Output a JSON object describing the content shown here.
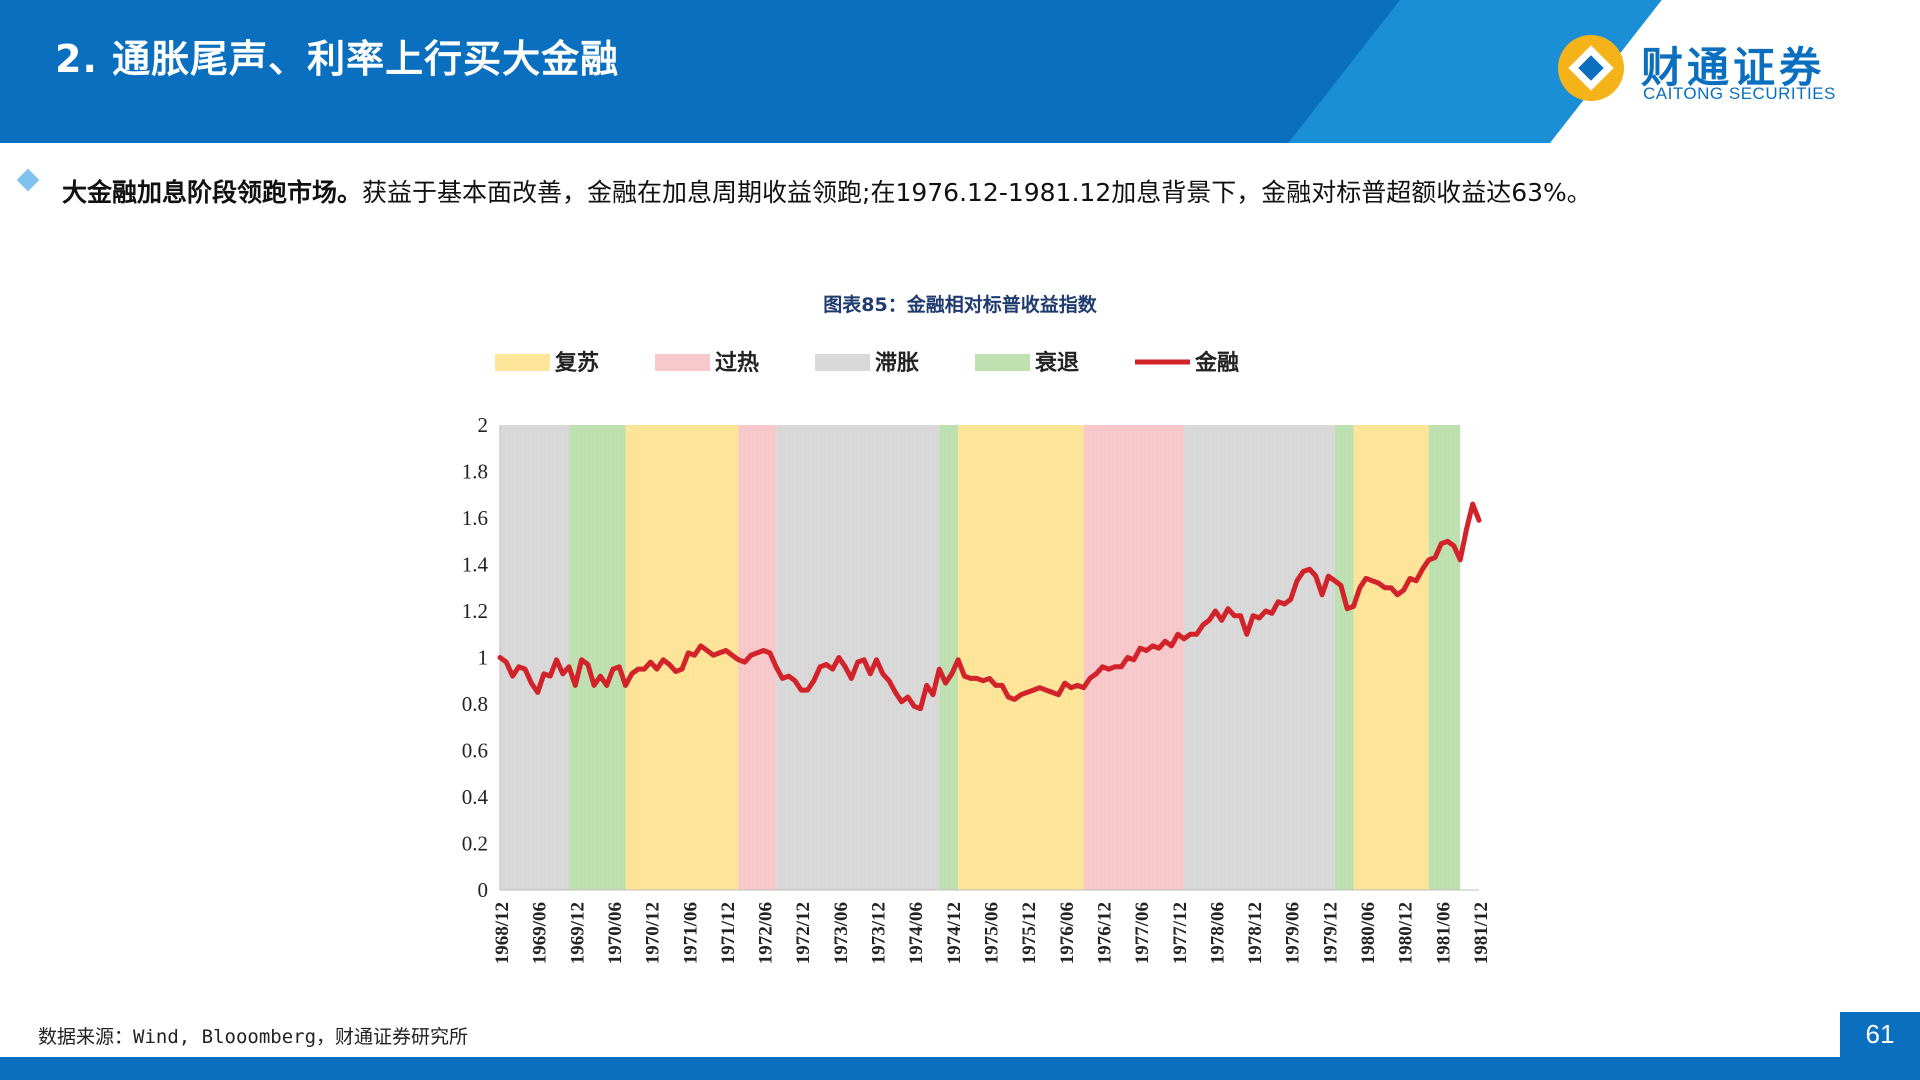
{
  "header": {
    "title": "2. 通胀尾声、利率上行买大金融",
    "logo_cn": "财通证券",
    "logo_en": "CAITONG SECURITIES"
  },
  "bullet": {
    "bold": "大金融加息阶段领跑市场。",
    "text": "获益于基本面改善，金融在加息周期收益领跑;在1976.12-1981.12加息背景下，金融对标普超额收益达63%。"
  },
  "chart_title": "图表85：金融相对标普收益指数",
  "source": "数据来源：Wind, Blooomberg，财通证券研究所",
  "page_number": "61",
  "colors": {
    "brand": "#0a6fbe",
    "recovery": "#fde59a",
    "overheat": "#f8c9cb",
    "stagflation": "#d9d9d9",
    "recession": "#bfe0b0",
    "line": "#d2232a"
  },
  "chart_data": {
    "type": "line",
    "legend": [
      {
        "label": "复苏",
        "key": "recovery"
      },
      {
        "label": "过热",
        "key": "overheat"
      },
      {
        "label": "滞胀",
        "key": "stagflation"
      },
      {
        "label": "衰退",
        "key": "recession"
      },
      {
        "label": "金融",
        "key": "line"
      }
    ],
    "ylim": [
      0,
      2
    ],
    "yticks": [
      "0",
      "0.2",
      "0.4",
      "0.6",
      "0.8",
      "1",
      "1.2",
      "1.4",
      "1.6",
      "1.8",
      "2"
    ],
    "x_start": "1968/12",
    "x_end": "1981/12",
    "xticks": [
      "1968/12",
      "1969/06",
      "1969/12",
      "1970/06",
      "1970/12",
      "1971/06",
      "1971/12",
      "1972/06",
      "1972/12",
      "1973/06",
      "1973/12",
      "1974/06",
      "1974/12",
      "1975/06",
      "1975/12",
      "1976/06",
      "1976/12",
      "1977/06",
      "1977/12",
      "1978/06",
      "1978/12",
      "1979/06",
      "1979/12",
      "1980/06",
      "1980/12",
      "1981/06",
      "1981/12"
    ],
    "phases": [
      {
        "phase": "stagflation",
        "from": "1968/12",
        "to": "1969/11"
      },
      {
        "phase": "recession",
        "from": "1969/11",
        "to": "1970/08"
      },
      {
        "phase": "recovery",
        "from": "1970/08",
        "to": "1972/02"
      },
      {
        "phase": "overheat",
        "from": "1972/02",
        "to": "1972/08"
      },
      {
        "phase": "stagflation",
        "from": "1972/08",
        "to": "1974/10"
      },
      {
        "phase": "recession",
        "from": "1974/10",
        "to": "1975/01"
      },
      {
        "phase": "recovery",
        "from": "1975/01",
        "to": "1976/09"
      },
      {
        "phase": "overheat",
        "from": "1976/09",
        "to": "1978/01"
      },
      {
        "phase": "stagflation",
        "from": "1978/01",
        "to": "1980/01"
      },
      {
        "phase": "recession",
        "from": "1980/01",
        "to": "1980/04"
      },
      {
        "phase": "recovery",
        "from": "1980/04",
        "to": "1981/04"
      },
      {
        "phase": "recession",
        "from": "1981/04",
        "to": "1981/09"
      }
    ],
    "series": [
      {
        "name": "金融",
        "points": [
          [
            "1968/12",
            1.0
          ],
          [
            "1969/01",
            0.98
          ],
          [
            "1969/02",
            0.92
          ],
          [
            "1969/03",
            0.96
          ],
          [
            "1969/04",
            0.95
          ],
          [
            "1969/05",
            0.89
          ],
          [
            "1969/06",
            0.85
          ],
          [
            "1969/07",
            0.93
          ],
          [
            "1969/08",
            0.92
          ],
          [
            "1969/09",
            0.99
          ],
          [
            "1969/10",
            0.93
          ],
          [
            "1969/11",
            0.96
          ],
          [
            "1969/12",
            0.88
          ],
          [
            "1970/01",
            0.99
          ],
          [
            "1970/02",
            0.97
          ],
          [
            "1970/03",
            0.88
          ],
          [
            "1970/04",
            0.92
          ],
          [
            "1970/05",
            0.88
          ],
          [
            "1970/06",
            0.95
          ],
          [
            "1970/07",
            0.96
          ],
          [
            "1970/08",
            0.88
          ],
          [
            "1970/09",
            0.93
          ],
          [
            "1970/10",
            0.95
          ],
          [
            "1970/11",
            0.95
          ],
          [
            "1970/12",
            0.98
          ],
          [
            "1971/01",
            0.95
          ],
          [
            "1971/02",
            0.99
          ],
          [
            "1971/03",
            0.97
          ],
          [
            "1971/04",
            0.94
          ],
          [
            "1971/05",
            0.95
          ],
          [
            "1971/06",
            1.02
          ],
          [
            "1971/07",
            1.01
          ],
          [
            "1971/08",
            1.05
          ],
          [
            "1971/09",
            1.03
          ],
          [
            "1971/10",
            1.01
          ],
          [
            "1971/11",
            1.02
          ],
          [
            "1971/12",
            1.03
          ],
          [
            "1972/01",
            1.01
          ],
          [
            "1972/02",
            0.99
          ],
          [
            "1972/03",
            0.98
          ],
          [
            "1972/04",
            1.01
          ],
          [
            "1972/05",
            1.02
          ],
          [
            "1972/06",
            1.03
          ],
          [
            "1972/07",
            1.02
          ],
          [
            "1972/08",
            0.96
          ],
          [
            "1972/09",
            0.91
          ],
          [
            "1972/10",
            0.92
          ],
          [
            "1972/11",
            0.9
          ],
          [
            "1972/12",
            0.86
          ],
          [
            "1973/01",
            0.86
          ],
          [
            "1973/02",
            0.9
          ],
          [
            "1973/03",
            0.96
          ],
          [
            "1973/04",
            0.97
          ],
          [
            "1973/05",
            0.95
          ],
          [
            "1973/06",
            1.0
          ],
          [
            "1973/07",
            0.96
          ],
          [
            "1973/08",
            0.91
          ],
          [
            "1973/09",
            0.98
          ],
          [
            "1973/10",
            0.99
          ],
          [
            "1973/11",
            0.93
          ],
          [
            "1973/12",
            0.99
          ],
          [
            "1974/01",
            0.93
          ],
          [
            "1974/02",
            0.9
          ],
          [
            "1974/03",
            0.85
          ],
          [
            "1974/04",
            0.81
          ],
          [
            "1974/05",
            0.83
          ],
          [
            "1974/06",
            0.79
          ],
          [
            "1974/07",
            0.78
          ],
          [
            "1974/08",
            0.88
          ],
          [
            "1974/09",
            0.84
          ],
          [
            "1974/10",
            0.95
          ],
          [
            "1974/11",
            0.89
          ],
          [
            "1974/12",
            0.93
          ],
          [
            "1975/01",
            0.99
          ],
          [
            "1975/02",
            0.92
          ],
          [
            "1975/03",
            0.91
          ],
          [
            "1975/04",
            0.91
          ],
          [
            "1975/05",
            0.9
          ],
          [
            "1975/06",
            0.91
          ],
          [
            "1975/07",
            0.88
          ],
          [
            "1975/08",
            0.88
          ],
          [
            "1975/09",
            0.83
          ],
          [
            "1975/10",
            0.82
          ],
          [
            "1975/11",
            0.84
          ],
          [
            "1975/12",
            0.85
          ],
          [
            "1976/01",
            0.86
          ],
          [
            "1976/02",
            0.87
          ],
          [
            "1976/03",
            0.86
          ],
          [
            "1976/04",
            0.85
          ],
          [
            "1976/05",
            0.84
          ],
          [
            "1976/06",
            0.89
          ],
          [
            "1976/07",
            0.87
          ],
          [
            "1976/08",
            0.88
          ],
          [
            "1976/09",
            0.87
          ],
          [
            "1976/10",
            0.91
          ],
          [
            "1976/11",
            0.93
          ],
          [
            "1976/12",
            0.96
          ],
          [
            "1977/01",
            0.95
          ],
          [
            "1977/02",
            0.96
          ],
          [
            "1977/03",
            0.96
          ],
          [
            "1977/04",
            1.0
          ],
          [
            "1977/05",
            0.99
          ],
          [
            "1977/06",
            1.04
          ],
          [
            "1977/07",
            1.03
          ],
          [
            "1977/08",
            1.05
          ],
          [
            "1977/09",
            1.04
          ],
          [
            "1977/10",
            1.07
          ],
          [
            "1977/11",
            1.05
          ],
          [
            "1977/12",
            1.1
          ],
          [
            "1978/01",
            1.08
          ],
          [
            "1978/02",
            1.1
          ],
          [
            "1978/03",
            1.1
          ],
          [
            "1978/04",
            1.14
          ],
          [
            "1978/05",
            1.16
          ],
          [
            "1978/06",
            1.2
          ],
          [
            "1978/07",
            1.16
          ],
          [
            "1978/08",
            1.21
          ],
          [
            "1978/09",
            1.18
          ],
          [
            "1978/10",
            1.18
          ],
          [
            "1978/11",
            1.1
          ],
          [
            "1978/12",
            1.18
          ],
          [
            "1979/01",
            1.17
          ],
          [
            "1979/02",
            1.2
          ],
          [
            "1979/03",
            1.19
          ],
          [
            "1979/04",
            1.24
          ],
          [
            "1979/05",
            1.23
          ],
          [
            "1979/06",
            1.25
          ],
          [
            "1979/07",
            1.33
          ],
          [
            "1979/08",
            1.37
          ],
          [
            "1979/09",
            1.38
          ],
          [
            "1979/10",
            1.35
          ],
          [
            "1979/11",
            1.27
          ],
          [
            "1979/12",
            1.35
          ],
          [
            "1980/01",
            1.33
          ],
          [
            "1980/02",
            1.31
          ],
          [
            "1980/03",
            1.21
          ],
          [
            "1980/04",
            1.22
          ],
          [
            "1980/05",
            1.3
          ],
          [
            "1980/06",
            1.34
          ],
          [
            "1980/07",
            1.33
          ],
          [
            "1980/08",
            1.32
          ],
          [
            "1980/09",
            1.3
          ],
          [
            "1980/10",
            1.3
          ],
          [
            "1980/11",
            1.27
          ],
          [
            "1980/12",
            1.29
          ],
          [
            "1981/01",
            1.34
          ],
          [
            "1981/02",
            1.33
          ],
          [
            "1981/03",
            1.38
          ],
          [
            "1981/04",
            1.42
          ],
          [
            "1981/05",
            1.43
          ],
          [
            "1981/06",
            1.49
          ],
          [
            "1981/07",
            1.5
          ],
          [
            "1981/08",
            1.48
          ],
          [
            "1981/09",
            1.42
          ],
          [
            "1981/10",
            1.55
          ],
          [
            "1981/11",
            1.66
          ],
          [
            "1981/12",
            1.59
          ]
        ]
      }
    ],
    "grid": false,
    "legend_position": "top"
  }
}
